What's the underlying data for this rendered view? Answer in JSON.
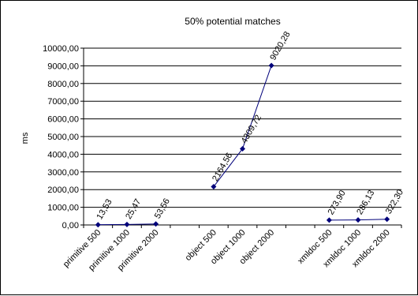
{
  "chart_data": {
    "type": "line",
    "title": "50% potential matches",
    "xlabel": "",
    "ylabel": "ms",
    "ylim": [
      0,
      10000
    ],
    "yticks": [
      "0,00",
      "1000,00",
      "2000,00",
      "3000,00",
      "4000,00",
      "5000,00",
      "6000,00",
      "7000,00",
      "8000,00",
      "9000,00",
      "10000,00"
    ],
    "categories": [
      "primitive 500",
      "primitive 1000",
      "primitive 2000",
      "",
      "object 500",
      "object 1000",
      "object 2000",
      "",
      "xmldoc 500",
      "xmldoc 1000",
      "xmldoc 2000"
    ],
    "series": [
      {
        "values": [
          13.53,
          25.47,
          53.56,
          null,
          2164.56,
          4309.72,
          9020.28,
          null,
          273.9,
          286.13,
          322.3
        ],
        "labels": [
          "13,53",
          "25,47",
          "53,56",
          "",
          "2164,56",
          "4309,72",
          "9020,28",
          "",
          "273,90",
          "286,13",
          "322,30"
        ],
        "color": "#00007a",
        "marker": "diamond"
      }
    ],
    "grid": true,
    "legend": "none"
  }
}
